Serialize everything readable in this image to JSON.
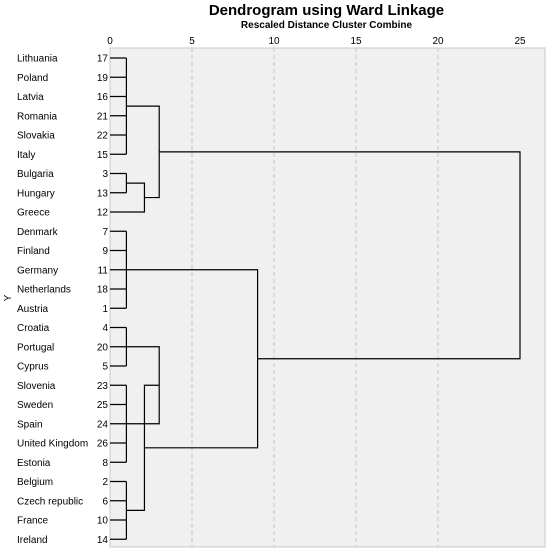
{
  "chart_data": {
    "type": "dendrogram",
    "title": "Dendrogram using Ward Linkage",
    "subtitle": "Rescaled Distance Cluster Combine",
    "ylabel": "Y",
    "xlim": [
      0,
      25
    ],
    "xticks": [
      0,
      5,
      10,
      15,
      20,
      25
    ],
    "grid": "vertical dashed at x ticks",
    "background": "#f0f0f0",
    "leaves": [
      {
        "name": "Lithuania",
        "id": 17
      },
      {
        "name": "Poland",
        "id": 19
      },
      {
        "name": "Latvia",
        "id": 16
      },
      {
        "name": "Romania",
        "id": 21
      },
      {
        "name": "Slovakia",
        "id": 22
      },
      {
        "name": "Italy",
        "id": 15
      },
      {
        "name": "Bulgaria",
        "id": 3
      },
      {
        "name": "Hungary",
        "id": 13
      },
      {
        "name": "Greece",
        "id": 12
      },
      {
        "name": "Denmark",
        "id": 7
      },
      {
        "name": "Finland",
        "id": 9
      },
      {
        "name": "Germany",
        "id": 11
      },
      {
        "name": "Netherlands",
        "id": 18
      },
      {
        "name": "Austria",
        "id": 1
      },
      {
        "name": "Croatia",
        "id": 4
      },
      {
        "name": "Portugal",
        "id": 20
      },
      {
        "name": "Cyprus",
        "id": 5
      },
      {
        "name": "Slovenia",
        "id": 23
      },
      {
        "name": "Sweden",
        "id": 25
      },
      {
        "name": "Spain",
        "id": 24
      },
      {
        "name": "United Kingdom",
        "id": 26
      },
      {
        "name": "Estonia",
        "id": 8
      },
      {
        "name": "Belgium",
        "id": 2
      },
      {
        "name": "Czech republic",
        "id": 6
      },
      {
        "name": "France",
        "id": 10
      },
      {
        "name": "Ireland",
        "id": 14
      }
    ],
    "merges": [
      {
        "a": "L0",
        "b": "L5",
        "distance": 1.0
      },
      {
        "a": "L6",
        "b": "L7",
        "distance": 1.0
      },
      {
        "a": "C1",
        "b": "L8",
        "distance": 2.1
      },
      {
        "a": "C0",
        "b": "C2",
        "distance": 3.0
      },
      {
        "a": "L9",
        "b": "L13",
        "distance": 1.0
      },
      {
        "a": "L14",
        "b": "L16",
        "distance": 1.0
      },
      {
        "a": "L17",
        "b": "L21",
        "distance": 1.0
      },
      {
        "a": "C6",
        "b": "C5",
        "distance": 3.0
      },
      {
        "a": "L22",
        "b": "L25",
        "distance": 1.0
      },
      {
        "a": "C8",
        "b": "C7",
        "distance": 2.1
      },
      {
        "a": "C4",
        "b": "C9",
        "distance": 9.0
      },
      {
        "a": "C3",
        "b": "C10",
        "distance": 25.0
      }
    ]
  }
}
